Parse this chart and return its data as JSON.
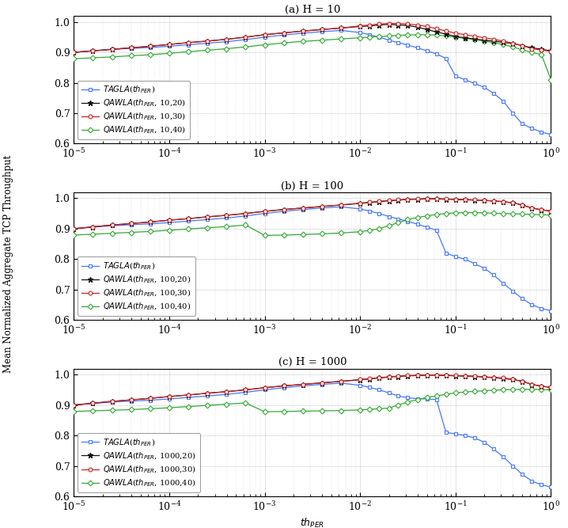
{
  "title_a": "(a) H = 10",
  "title_b": "(b) H = 100",
  "title_c": "(c) H = 1000",
  "ylabel": "Mean Normalized Aggregate TCP Throughput",
  "ylim": [
    0.6,
    1.02
  ],
  "yticks": [
    0.6,
    0.7,
    0.8,
    0.9,
    1.0
  ],
  "colors": {
    "tagla": "#4477FF",
    "qawla20": "#111111",
    "qawla30": "#CC2222",
    "qawla40": "#33AA33"
  },
  "per_values": [
    1e-05,
    1.58e-05,
    2.51e-05,
    3.98e-05,
    6.31e-05,
    0.0001,
    0.000158,
    0.000251,
    0.000398,
    0.000631,
    0.001,
    0.00158,
    0.00251,
    0.00398,
    0.00631,
    0.01,
    0.0126,
    0.0158,
    0.02,
    0.0251,
    0.0316,
    0.0398,
    0.0501,
    0.0631,
    0.0794,
    0.1,
    0.126,
    0.158,
    0.2,
    0.251,
    0.316,
    0.398,
    0.501,
    0.631,
    0.794,
    1.0
  ],
  "H10": {
    "tagla": [
      0.9,
      0.905,
      0.91,
      0.913,
      0.916,
      0.92,
      0.925,
      0.93,
      0.935,
      0.942,
      0.95,
      0.957,
      0.963,
      0.968,
      0.972,
      0.965,
      0.958,
      0.95,
      0.94,
      0.932,
      0.924,
      0.915,
      0.905,
      0.895,
      0.88,
      0.822,
      0.81,
      0.798,
      0.785,
      0.765,
      0.74,
      0.7,
      0.665,
      0.65,
      0.638,
      0.63
    ],
    "qawla20": [
      0.9,
      0.905,
      0.91,
      0.915,
      0.92,
      0.926,
      0.932,
      0.937,
      0.943,
      0.95,
      0.958,
      0.964,
      0.97,
      0.975,
      0.98,
      0.985,
      0.987,
      0.99,
      0.992,
      0.99,
      0.988,
      0.983,
      0.975,
      0.967,
      0.96,
      0.952,
      0.948,
      0.944,
      0.94,
      0.937,
      0.933,
      0.929,
      0.922,
      0.915,
      0.91,
      0.905
    ],
    "qawla30": [
      0.9,
      0.905,
      0.91,
      0.915,
      0.92,
      0.926,
      0.932,
      0.937,
      0.943,
      0.95,
      0.958,
      0.964,
      0.97,
      0.975,
      0.98,
      0.987,
      0.99,
      0.993,
      0.995,
      0.995,
      0.993,
      0.99,
      0.985,
      0.978,
      0.97,
      0.963,
      0.958,
      0.953,
      0.948,
      0.943,
      0.937,
      0.93,
      0.922,
      0.912,
      0.908,
      0.903
    ],
    "qawla40": [
      0.879,
      0.882,
      0.885,
      0.889,
      0.892,
      0.897,
      0.902,
      0.907,
      0.912,
      0.918,
      0.925,
      0.931,
      0.936,
      0.94,
      0.944,
      0.948,
      0.95,
      0.952,
      0.954,
      0.956,
      0.957,
      0.958,
      0.958,
      0.957,
      0.954,
      0.95,
      0.946,
      0.942,
      0.937,
      0.932,
      0.926,
      0.918,
      0.908,
      0.9,
      0.893,
      0.81
    ]
  },
  "H100": {
    "tagla": [
      0.9,
      0.905,
      0.91,
      0.913,
      0.916,
      0.92,
      0.925,
      0.93,
      0.935,
      0.942,
      0.95,
      0.957,
      0.963,
      0.968,
      0.972,
      0.965,
      0.958,
      0.95,
      0.94,
      0.932,
      0.924,
      0.915,
      0.905,
      0.895,
      0.82,
      0.808,
      0.8,
      0.785,
      0.77,
      0.748,
      0.72,
      0.695,
      0.67,
      0.65,
      0.638,
      0.63
    ],
    "qawla20": [
      0.9,
      0.906,
      0.912,
      0.917,
      0.922,
      0.928,
      0.933,
      0.939,
      0.944,
      0.95,
      0.957,
      0.963,
      0.968,
      0.973,
      0.978,
      0.983,
      0.986,
      0.989,
      0.992,
      0.994,
      0.996,
      0.997,
      0.998,
      0.998,
      0.997,
      0.996,
      0.995,
      0.994,
      0.993,
      0.991,
      0.989,
      0.985,
      0.978,
      0.968,
      0.962,
      0.958
    ],
    "qawla30": [
      0.9,
      0.906,
      0.912,
      0.917,
      0.922,
      0.928,
      0.933,
      0.939,
      0.944,
      0.95,
      0.957,
      0.963,
      0.968,
      0.973,
      0.978,
      0.984,
      0.987,
      0.99,
      0.993,
      0.995,
      0.997,
      0.998,
      0.999,
      0.999,
      0.998,
      0.997,
      0.996,
      0.995,
      0.993,
      0.991,
      0.989,
      0.985,
      0.978,
      0.968,
      0.962,
      0.958
    ],
    "qawla40": [
      0.879,
      0.882,
      0.885,
      0.888,
      0.891,
      0.895,
      0.899,
      0.903,
      0.907,
      0.912,
      0.878,
      0.879,
      0.881,
      0.883,
      0.886,
      0.89,
      0.895,
      0.9,
      0.91,
      0.92,
      0.93,
      0.937,
      0.942,
      0.947,
      0.95,
      0.952,
      0.953,
      0.953,
      0.952,
      0.951,
      0.95,
      0.949,
      0.948,
      0.947,
      0.946,
      0.945
    ]
  },
  "H1000": {
    "tagla": [
      0.9,
      0.905,
      0.91,
      0.913,
      0.916,
      0.92,
      0.925,
      0.93,
      0.935,
      0.942,
      0.95,
      0.957,
      0.963,
      0.968,
      0.972,
      0.965,
      0.958,
      0.95,
      0.94,
      0.93,
      0.924,
      0.921,
      0.92,
      0.918,
      0.81,
      0.805,
      0.8,
      0.792,
      0.778,
      0.755,
      0.73,
      0.7,
      0.672,
      0.65,
      0.638,
      0.63
    ],
    "qawla20": [
      0.9,
      0.906,
      0.912,
      0.917,
      0.922,
      0.928,
      0.933,
      0.939,
      0.944,
      0.95,
      0.957,
      0.963,
      0.968,
      0.973,
      0.978,
      0.983,
      0.986,
      0.989,
      0.992,
      0.994,
      0.996,
      0.997,
      0.998,
      0.998,
      0.997,
      0.996,
      0.995,
      0.994,
      0.992,
      0.99,
      0.987,
      0.984,
      0.978,
      0.968,
      0.962,
      0.958
    ],
    "qawla30": [
      0.9,
      0.906,
      0.912,
      0.917,
      0.922,
      0.928,
      0.933,
      0.939,
      0.944,
      0.95,
      0.957,
      0.963,
      0.968,
      0.973,
      0.978,
      0.984,
      0.987,
      0.99,
      0.993,
      0.995,
      0.997,
      0.998,
      0.999,
      0.999,
      0.998,
      0.997,
      0.996,
      0.995,
      0.993,
      0.991,
      0.989,
      0.985,
      0.978,
      0.968,
      0.962,
      0.958
    ],
    "qawla40": [
      0.879,
      0.881,
      0.883,
      0.885,
      0.888,
      0.891,
      0.895,
      0.899,
      0.903,
      0.907,
      0.878,
      0.879,
      0.88,
      0.881,
      0.882,
      0.884,
      0.886,
      0.888,
      0.89,
      0.9,
      0.91,
      0.918,
      0.925,
      0.93,
      0.935,
      0.94,
      0.943,
      0.945,
      0.947,
      0.949,
      0.95,
      0.951,
      0.952,
      0.952,
      0.951,
      0.95
    ]
  },
  "legend_H": [
    "10",
    "100",
    "1000"
  ]
}
